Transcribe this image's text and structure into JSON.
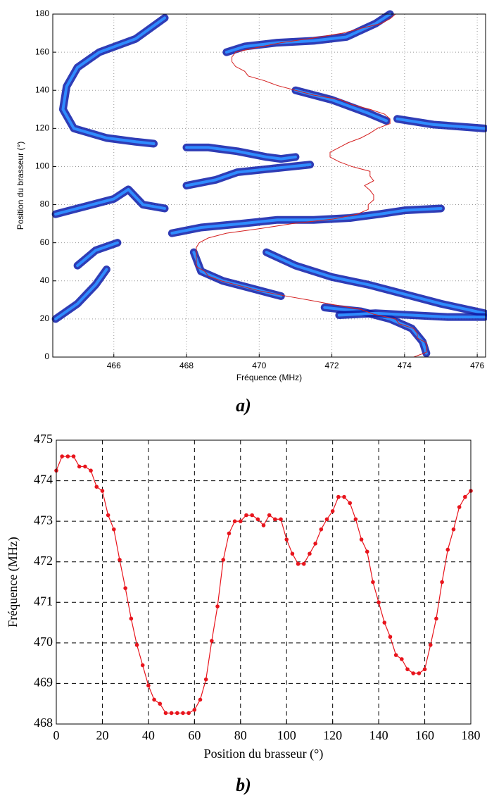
{
  "chart_data": [
    {
      "type": "contour",
      "x_label": "Fréquence (MHz)",
      "y_label": "Position du brasseur (°)",
      "caption": "a)",
      "xlim": [
        464.32,
        476.23
      ],
      "ylim": [
        0,
        180
      ],
      "xticks": [
        466,
        468,
        470,
        472,
        474,
        476
      ],
      "yticks": [
        0,
        20,
        40,
        60,
        80,
        100,
        120,
        140,
        160,
        180
      ],
      "grid": true,
      "ridge_color": "#0a1aa8",
      "core_color": "#2f8cff",
      "trace_color": "#d42020",
      "ridges": [
        {
          "x": [
            467.4,
            466.6,
            465.6,
            465.0,
            464.7,
            464.6,
            464.9,
            465.8,
            466.6,
            467.1
          ],
          "y": [
            178,
            167,
            160,
            152,
            142,
            130,
            120,
            115,
            113,
            112
          ]
        },
        {
          "x": [
            468.0,
            468.6,
            469.4,
            470.2,
            470.6,
            471.0
          ],
          "y": [
            110,
            110,
            108,
            105,
            104,
            105
          ]
        },
        {
          "x": [
            469.1,
            469.6,
            470.5,
            471.5,
            472.4,
            473.2,
            473.6
          ],
          "y": [
            160,
            163,
            165,
            166,
            168,
            175,
            180
          ]
        },
        {
          "x": [
            471.0,
            472.0,
            473.0,
            473.5
          ],
          "y": [
            140,
            135,
            128,
            124
          ]
        },
        {
          "x": [
            473.8,
            474.8,
            476.2
          ],
          "y": [
            125,
            122,
            120
          ]
        },
        {
          "x": [
            471.4,
            470.4,
            469.4,
            468.8,
            468.0
          ],
          "y": [
            101,
            99,
            97,
            93,
            90
          ]
        },
        {
          "x": [
            464.4,
            465.0,
            466.0,
            466.4,
            466.8,
            467.4
          ],
          "y": [
            75,
            78,
            83,
            88,
            80,
            78
          ]
        },
        {
          "x": [
            467.6,
            468.4,
            469.5,
            470.5,
            471.5,
            472.5,
            473.3,
            474.0,
            475.0
          ],
          "y": [
            65,
            68,
            70,
            72,
            72,
            73,
            75,
            77,
            78
          ]
        },
        {
          "x": [
            465.0,
            465.5,
            466.1
          ],
          "y": [
            48,
            56,
            60
          ]
        },
        {
          "x": [
            464.4,
            465.0,
            465.5,
            465.8
          ],
          "y": [
            20,
            28,
            38,
            46
          ]
        },
        {
          "x": [
            468.2,
            468.4,
            469.0,
            469.8,
            470.6
          ],
          "y": [
            55,
            45,
            40,
            36,
            32
          ]
        },
        {
          "x": [
            470.2,
            471.0,
            472.0,
            473.0,
            474.0,
            475.0,
            476.2
          ],
          "y": [
            55,
            48,
            42,
            38,
            33,
            28,
            23
          ]
        },
        {
          "x": [
            471.8,
            472.8,
            473.6,
            474.2,
            474.5,
            474.6
          ],
          "y": [
            26,
            24,
            20,
            15,
            8,
            2
          ]
        },
        {
          "x": [
            472.2,
            473.2,
            474.2,
            475.2,
            476.2
          ],
          "y": [
            22,
            23,
            22,
            21,
            21
          ]
        }
      ]
    },
    {
      "type": "line",
      "x_label": "Position du brasseur (°)",
      "y_label": "Fréquence (MHz)",
      "caption": "b)",
      "xlim": [
        0,
        180
      ],
      "ylim": [
        468,
        475
      ],
      "xticks": [
        0,
        20,
        40,
        60,
        80,
        100,
        120,
        140,
        160,
        180
      ],
      "yticks": [
        468,
        469,
        470,
        471,
        472,
        473,
        474,
        475
      ],
      "grid": true,
      "color": "#e8141c",
      "x": [
        0,
        2.5,
        5,
        7.5,
        10,
        12.5,
        15,
        17.5,
        20,
        22.5,
        25,
        27.5,
        30,
        32.5,
        35,
        37.5,
        40,
        42.5,
        45,
        47.5,
        50,
        52.5,
        55,
        57.5,
        60,
        62.5,
        65,
        67.5,
        70,
        72.5,
        75,
        77.5,
        80,
        82.5,
        85,
        87.5,
        90,
        92.5,
        95,
        97.5,
        100,
        102.5,
        105,
        107.5,
        110,
        112.5,
        115,
        117.5,
        120,
        122.5,
        125,
        127.5,
        130,
        132.5,
        135,
        137.5,
        140,
        142.5,
        145,
        147.5,
        150,
        152.5,
        155,
        157.5,
        160,
        162.5,
        165,
        167.5,
        170,
        172.5,
        175,
        177.5,
        180
      ],
      "values": [
        474.25,
        474.6,
        474.6,
        474.6,
        474.35,
        474.35,
        474.25,
        473.85,
        473.75,
        473.15,
        472.8,
        472.05,
        471.35,
        470.6,
        469.95,
        469.45,
        468.95,
        468.6,
        468.5,
        468.27,
        468.27,
        468.27,
        468.27,
        468.27,
        468.35,
        468.6,
        469.1,
        470.05,
        470.9,
        472.05,
        472.7,
        473.0,
        473.0,
        473.15,
        473.15,
        473.05,
        472.9,
        473.15,
        473.05,
        473.05,
        472.55,
        472.2,
        471.95,
        471.95,
        472.2,
        472.45,
        472.8,
        473.05,
        473.25,
        473.6,
        473.6,
        473.45,
        473.05,
        472.55,
        472.25,
        471.5,
        471.0,
        470.5,
        470.15,
        469.7,
        469.6,
        469.35,
        469.25,
        469.25,
        469.35,
        469.95,
        470.6,
        471.5,
        472.3,
        472.8,
        473.35,
        473.6,
        473.75
      ]
    }
  ]
}
